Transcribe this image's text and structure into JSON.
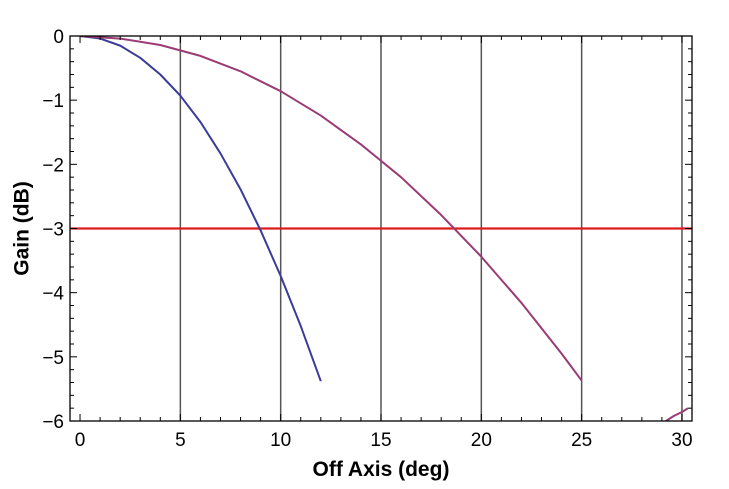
{
  "chart_data": {
    "type": "line",
    "title": "",
    "xlabel": "Off Axis (deg)",
    "ylabel": "Gain (dB)",
    "xlim": [
      -0.5,
      30.5
    ],
    "ylim": [
      -6,
      0
    ],
    "xticks": [
      0,
      5,
      10,
      15,
      20,
      25,
      30
    ],
    "xtick_labels": [
      "0",
      "5",
      "10",
      "15",
      "20",
      "25",
      "30"
    ],
    "yticks": [
      0,
      -1,
      -2,
      -3,
      -4,
      -5,
      -6
    ],
    "ytick_labels": [
      "0",
      "−1",
      "−2",
      "−3",
      "−4",
      "−5",
      "−6"
    ],
    "vertical_gridlines_x": [
      5,
      10,
      15,
      20,
      25,
      30
    ],
    "grid": "vertical lines only",
    "legend": "none",
    "reference_line": {
      "y": -3,
      "color": "#dd1c1c"
    },
    "series": [
      {
        "color": "#3b3b9a",
        "x": [
          0,
          1,
          2,
          3,
          4,
          5,
          6,
          7,
          8,
          9,
          10,
          11,
          12
        ],
        "y": [
          0,
          -0.04,
          -0.15,
          -0.34,
          -0.6,
          -0.93,
          -1.34,
          -1.83,
          -2.39,
          -3.03,
          -3.74,
          -4.52,
          -5.38
        ]
      },
      {
        "color": "#9a3b74",
        "x": [
          0,
          2,
          4,
          6,
          8,
          10,
          12,
          14,
          16,
          18,
          20,
          22,
          24,
          25
        ],
        "y": [
          0,
          -0.04,
          -0.14,
          -0.31,
          -0.55,
          -0.86,
          -1.24,
          -1.69,
          -2.2,
          -2.79,
          -3.44,
          -4.16,
          -4.95,
          -5.37
        ]
      },
      {
        "color": "#9a3b74",
        "x": [
          29.2,
          29.6,
          30,
          30.3
        ],
        "y": [
          -6.0,
          -5.92,
          -5.86,
          -5.8
        ]
      }
    ]
  }
}
